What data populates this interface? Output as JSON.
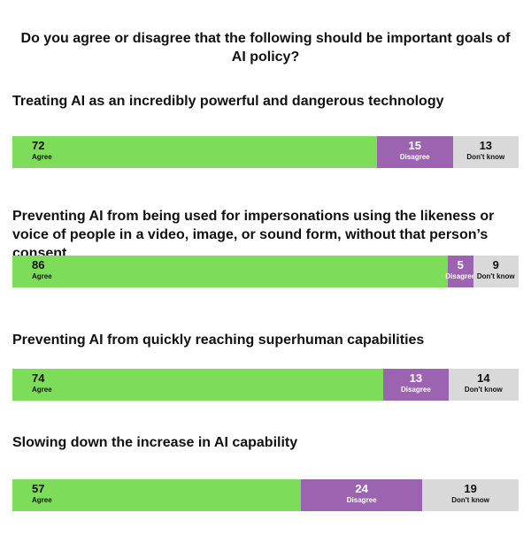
{
  "chart_data": {
    "type": "bar",
    "stacked": true,
    "orientation": "horizontal",
    "title": "Do you agree or disagree that the following should be important goals of AI policy?",
    "series_labels": [
      "Agree",
      "Disagree",
      "Don't know"
    ],
    "colors": {
      "agree": "#7ddc5a",
      "disagree": "#9b63b0",
      "dontknow": "#d9d9d9"
    },
    "categories": [
      "Treating AI as an incredibly powerful and dangerous technology",
      "Preventing AI from being used for impersonations using the likeness or voice of people in a video, image, or sound form, without that person’s consent",
      "Preventing AI from quickly reaching superhuman capabilities",
      "Slowing down the increase in AI capability"
    ],
    "series": [
      {
        "name": "Agree",
        "values": [
          72,
          86,
          74,
          57
        ]
      },
      {
        "name": "Disagree",
        "values": [
          15,
          5,
          13,
          24
        ]
      },
      {
        "name": "Don't know",
        "values": [
          13,
          9,
          14,
          19
        ]
      }
    ]
  }
}
